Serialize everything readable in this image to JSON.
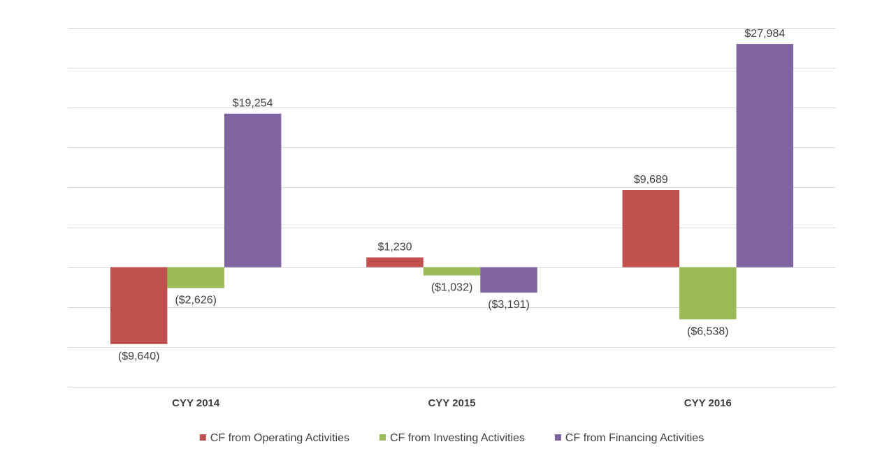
{
  "chart_data": {
    "type": "bar",
    "title": "",
    "xlabel": "",
    "ylabel": "",
    "ylim": [
      -15000,
      30000
    ],
    "grid_step": 5000,
    "grid": true,
    "legend_position": "bottom",
    "categories": [
      "CYY 2014",
      "CYY 2015",
      "CYY 2016"
    ],
    "series": [
      {
        "name": "CF from Operating Activities",
        "color": "#c0504d",
        "values": [
          -9640,
          1230,
          9689
        ],
        "labels": [
          "($9,640)",
          "$1,230",
          "$9,689"
        ]
      },
      {
        "name": "CF from Investing Activities",
        "color": "#9bbb59",
        "values": [
          -2626,
          -1032,
          -6538
        ],
        "labels": [
          "($2,626)",
          "($1,032)",
          "($6,538)"
        ]
      },
      {
        "name": "CF from Financing Activities",
        "color": "#8064a2",
        "values": [
          19254,
          -3191,
          27984
        ],
        "labels": [
          "$19,254",
          "($3,191)",
          "$27,984"
        ]
      }
    ]
  }
}
